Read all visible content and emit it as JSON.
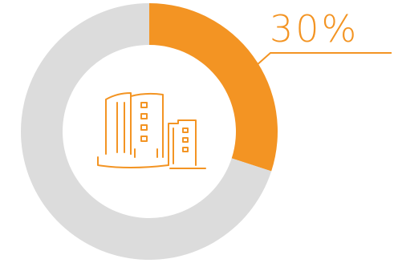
{
  "chart_data": {
    "type": "pie",
    "slices": [
      {
        "value": 30,
        "color": "#f39423"
      },
      {
        "value": 70,
        "color": "#dcdcdc"
      }
    ],
    "label": "30%",
    "center_icon": "buildings-icon"
  },
  "colors": {
    "accent": "#f39423",
    "track": "#dcdcdc"
  }
}
